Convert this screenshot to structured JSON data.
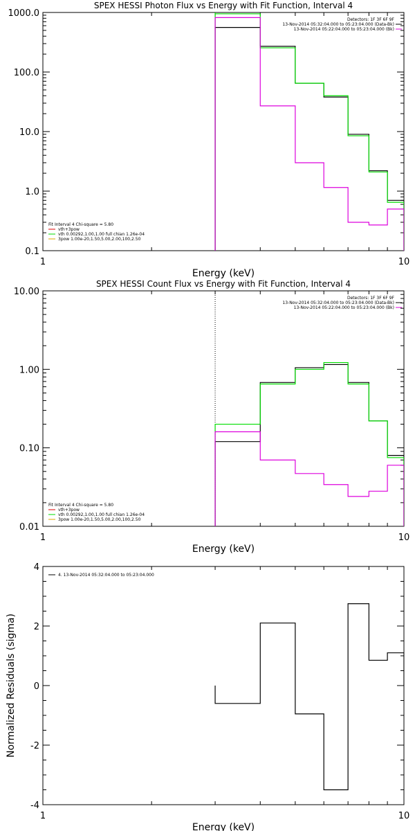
{
  "chart_data": [
    {
      "type": "line",
      "title": "SPEX HESSI Photon Flux vs Energy with Fit Function, Interval 4",
      "xlabel": "Energy (keV)",
      "ylabel": "",
      "xscale": "log",
      "yscale": "log",
      "xlim": [
        1,
        10
      ],
      "ylim": [
        0.1,
        1000
      ],
      "x_ticks": [
        "1",
        "10"
      ],
      "y_ticks": [
        "0.1",
        "1.0",
        "10.0",
        "100.0",
        "1000.0"
      ],
      "bin_edges": [
        3,
        4,
        5,
        6,
        7,
        8,
        9,
        10
      ],
      "series": [
        {
          "color": "#000000",
          "values": [
            560,
            270,
            65,
            38,
            9,
            2.2,
            0.7
          ]
        },
        {
          "color": "#00dd00",
          "values": [
            950,
            255,
            65,
            40,
            8.5,
            2.1,
            0.65
          ]
        },
        {
          "color": "#dd00dd",
          "values": [
            820,
            27,
            3,
            1.15,
            0.3,
            0.27,
            0.5
          ]
        }
      ],
      "vline": {
        "x": 3,
        "style": "solid",
        "color": "#00dd00"
      },
      "legend_right": {
        "lines": [
          "Detectors: 1F 3F 6F 9F",
          "13-Nov-2014 05:32:04.000 to 05:23:04.000 (Data-Bk)",
          "13-Nov-2014 05:22:04.000 to 05:23:04.000 (Bk)"
        ],
        "colors": [
          "#000000",
          "#000000",
          "#dd00dd"
        ]
      },
      "legend_left": {
        "header": "Fit Interval 4   Chi-square = 5.80",
        "lines": [
          "vth+3pow",
          "vth 0.00292,1.00,1.00  full chian 1.26e-04",
          "3pow 1.00e-20,1.50,5.00,2.00,100,2.50"
        ],
        "colors": [
          "#dd0000",
          "#00dd00",
          "#ddaa00"
        ]
      }
    },
    {
      "type": "line",
      "title": "SPEX HESSI Count Flux vs Energy with Fit Function, Interval 4",
      "xlabel": "Energy (keV)",
      "ylabel": "",
      "xscale": "log",
      "yscale": "log",
      "xlim": [
        1,
        10
      ],
      "ylim": [
        0.01,
        10
      ],
      "x_ticks": [
        "1",
        "10"
      ],
      "y_ticks": [
        "0.01",
        "0.10",
        "1.00",
        "10.00"
      ],
      "bin_edges": [
        3,
        4,
        5,
        6,
        7,
        8,
        9,
        10
      ],
      "series": [
        {
          "color": "#000000",
          "values": [
            0.12,
            0.68,
            1.05,
            1.15,
            0.68,
            0.22,
            0.08
          ]
        },
        {
          "color": "#00dd00",
          "values": [
            0.2,
            0.65,
            1.0,
            1.22,
            0.65,
            0.22,
            0.075
          ]
        },
        {
          "color": "#dd00dd",
          "values": [
            0.16,
            0.07,
            0.047,
            0.034,
            0.024,
            0.028,
            0.06
          ]
        }
      ],
      "vline": {
        "x": 3,
        "style": "dotted",
        "color": "#000000"
      },
      "legend_right": {
        "lines": [
          "Detectors: 1F 3F 6F 9F",
          "13-Nov-2014 05:32:04.000 to 05:23:04.000 (Data-Bk)",
          "13-Nov-2014 05:22:04.000 to 05:23:04.000 (Bk)"
        ],
        "colors": [
          "#000000",
          "#000000",
          "#dd00dd"
        ]
      },
      "legend_left": {
        "header": "Fit Interval 4   Chi-square = 5.80",
        "lines": [
          "vth+3pow",
          "vth 0.00292,1.00,1.00  full chian 1.26e-04",
          "3pow 1.00e-20,1.50,5.00,2.00,100,2.50"
        ],
        "colors": [
          "#dd0000",
          "#00dd00",
          "#ddaa00"
        ]
      }
    },
    {
      "type": "line",
      "title": "",
      "xlabel": "Energy (keV)",
      "ylabel": "Normalized Residuals (sigma)",
      "xscale": "log",
      "yscale": "linear",
      "xlim": [
        1,
        10
      ],
      "ylim": [
        -4,
        4
      ],
      "x_ticks": [
        "1",
        "10"
      ],
      "y_ticks": [
        "-4",
        "-2",
        "0",
        "2",
        "4"
      ],
      "bin_edges": [
        3,
        4,
        5,
        6,
        7,
        8,
        9,
        10
      ],
      "series": [
        {
          "color": "#000000",
          "values": [
            -0.6,
            2.1,
            -0.95,
            -3.5,
            2.75,
            0.85,
            1.1
          ]
        }
      ],
      "legend_left": {
        "lines": [
          "4. 13-Nov-2014 05:32:04.000 to 05:23:04.000"
        ],
        "colors": [
          "#000000"
        ]
      }
    }
  ]
}
